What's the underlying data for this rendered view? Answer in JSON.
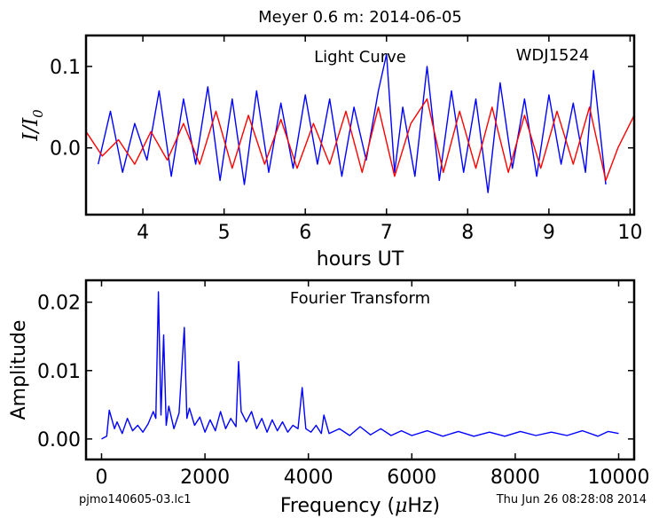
{
  "figure": {
    "title": "Meyer 0.6 m:  2014-06-05",
    "footer_left": "pjmo140605-03.lc1",
    "footer_right": "Thu Jun 26 08:28:08 2014"
  },
  "chart_data": [
    {
      "type": "line",
      "title": "Light Curve",
      "annotation": "WDJ1524",
      "xlabel": "hours UT",
      "ylabel_main": "I",
      "ylabel_denominator": "I",
      "ylabel_subscript": "0",
      "xlim": [
        3.3,
        10.05
      ],
      "ylim": [
        -0.082,
        0.138
      ],
      "xticks": [
        4,
        5,
        6,
        7,
        8,
        9,
        10
      ],
      "yticks": [
        0.0,
        0.1
      ],
      "ytick_labels": [
        "0.0",
        "0.1"
      ],
      "grid": false,
      "series": [
        {
          "color": "#0000ff",
          "x": [
            3.45,
            3.6,
            3.75,
            3.9,
            4.05,
            4.2,
            4.35,
            4.5,
            4.65,
            4.8,
            4.95,
            5.1,
            5.25,
            5.4,
            5.55,
            5.7,
            5.85,
            6.0,
            6.15,
            6.3,
            6.45,
            6.6,
            6.75,
            6.9,
            7.0,
            7.1,
            7.2,
            7.35,
            7.5,
            7.65,
            7.8,
            7.95,
            8.1,
            8.25,
            8.4,
            8.55,
            8.7,
            8.85,
            9.0,
            9.15,
            9.3,
            9.45,
            9.55,
            9.7
          ],
          "y": [
            -0.02,
            0.045,
            -0.03,
            0.03,
            -0.015,
            0.07,
            -0.035,
            0.06,
            -0.02,
            0.075,
            -0.04,
            0.06,
            -0.045,
            0.07,
            -0.03,
            0.055,
            -0.025,
            0.065,
            -0.02,
            0.06,
            -0.035,
            0.05,
            -0.015,
            0.07,
            0.115,
            -0.03,
            0.05,
            -0.035,
            0.1,
            -0.04,
            0.07,
            -0.03,
            0.06,
            -0.055,
            0.08,
            -0.025,
            0.06,
            -0.035,
            0.065,
            -0.02,
            0.055,
            -0.03,
            0.095,
            -0.045
          ]
        },
        {
          "color": "#ff0000",
          "x": [
            3.3,
            3.5,
            3.7,
            3.9,
            4.1,
            4.3,
            4.5,
            4.7,
            4.9,
            5.1,
            5.3,
            5.5,
            5.7,
            5.9,
            6.1,
            6.3,
            6.5,
            6.7,
            6.9,
            7.1,
            7.3,
            7.5,
            7.7,
            7.9,
            8.1,
            8.3,
            8.5,
            8.7,
            8.9,
            9.1,
            9.3,
            9.5,
            9.7,
            9.85,
            10.05
          ],
          "y": [
            0.02,
            -0.01,
            0.01,
            -0.02,
            0.02,
            -0.015,
            0.03,
            -0.02,
            0.045,
            -0.025,
            0.04,
            -0.02,
            0.035,
            -0.025,
            0.03,
            -0.02,
            0.045,
            -0.03,
            0.05,
            -0.035,
            0.03,
            0.06,
            -0.03,
            0.045,
            -0.025,
            0.05,
            -0.03,
            0.04,
            -0.025,
            0.045,
            -0.02,
            0.05,
            -0.04,
            0.0,
            0.04
          ]
        }
      ]
    },
    {
      "type": "line",
      "title": "Fourier Transform",
      "xlabel_prefix": "Frequency (",
      "xlabel_mu": "μ",
      "xlabel_suffix": "Hz)",
      "ylabel": "Amplitude",
      "xlim": [
        -300,
        10300
      ],
      "ylim": [
        -0.003,
        0.0232
      ],
      "xticks": [
        0,
        2000,
        4000,
        6000,
        8000,
        10000
      ],
      "xtick_labels": [
        "0",
        "2000",
        "4000",
        "6000",
        "8000",
        "10000"
      ],
      "yticks": [
        0.0,
        0.01,
        0.02
      ],
      "ytick_labels": [
        "0.00",
        "0.01",
        "0.02"
      ],
      "grid": false,
      "series": [
        {
          "color": "#0000ff",
          "x": [
            0,
            100,
            150,
            250,
            300,
            400,
            500,
            600,
            700,
            800,
            900,
            1000,
            1050,
            1100,
            1150,
            1200,
            1250,
            1300,
            1400,
            1500,
            1600,
            1650,
            1700,
            1800,
            1900,
            2000,
            2100,
            2200,
            2300,
            2400,
            2500,
            2600,
            2650,
            2700,
            2800,
            2900,
            3000,
            3100,
            3200,
            3300,
            3400,
            3500,
            3600,
            3700,
            3800,
            3880,
            3950,
            4050,
            4150,
            4250,
            4300,
            4400,
            4600,
            4800,
            5000,
            5200,
            5400,
            5600,
            5800,
            6000,
            6300,
            6600,
            6900,
            7200,
            7500,
            7800,
            8100,
            8400,
            8700,
            9000,
            9300,
            9600,
            9800,
            10000
          ],
          "y": [
            0.0,
            0.0004,
            0.0042,
            0.0015,
            0.0025,
            0.0008,
            0.003,
            0.0012,
            0.002,
            0.001,
            0.0022,
            0.004,
            0.003,
            0.0215,
            0.0035,
            0.0152,
            0.002,
            0.0048,
            0.0015,
            0.0038,
            0.0163,
            0.003,
            0.0045,
            0.002,
            0.0032,
            0.001,
            0.0028,
            0.0012,
            0.004,
            0.0015,
            0.003,
            0.0018,
            0.0113,
            0.004,
            0.0025,
            0.004,
            0.0015,
            0.003,
            0.001,
            0.0028,
            0.0012,
            0.0025,
            0.001,
            0.002,
            0.0015,
            0.0075,
            0.0015,
            0.001,
            0.002,
            0.0008,
            0.0035,
            0.0008,
            0.0015,
            0.0005,
            0.0018,
            0.0006,
            0.0015,
            0.0005,
            0.0012,
            0.0005,
            0.0012,
            0.0004,
            0.0011,
            0.0004,
            0.001,
            0.0004,
            0.0011,
            0.0005,
            0.001,
            0.0005,
            0.0012,
            0.0004,
            0.0011,
            0.0008
          ]
        }
      ]
    }
  ]
}
